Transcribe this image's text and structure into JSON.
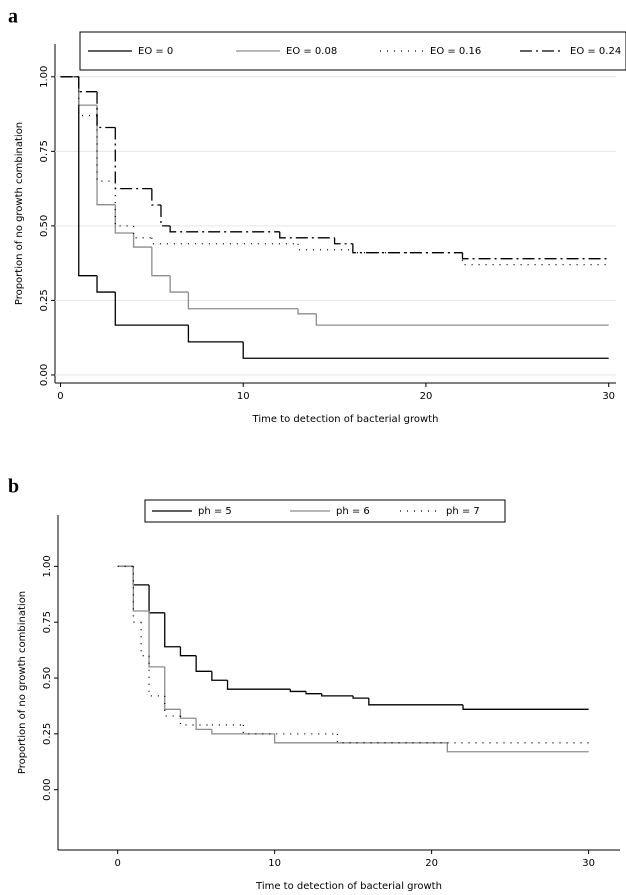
{
  "chart_data": [
    {
      "type": "step",
      "panel_label": "a",
      "xlabel": "Time to detection of bacterial growth",
      "ylabel": "Proportion of no growth combination",
      "xlim": [
        -0.3,
        30.4
      ],
      "ylim": [
        -0.027,
        1.11
      ],
      "xticks": [
        0,
        10,
        20,
        30
      ],
      "yticks": [
        {
          "value": 0,
          "label": "0.00"
        },
        {
          "value": 0.25,
          "label": "0.25"
        },
        {
          "value": 0.5,
          "label": "0.50"
        },
        {
          "value": 0.75,
          "label": "0.75"
        },
        {
          "value": 1,
          "label": "1.00"
        }
      ],
      "grid": true,
      "series": [
        {
          "name": "EO = 0",
          "color": "#000000",
          "dash": "solid",
          "x": [
            0,
            1,
            2,
            3,
            7,
            10,
            30
          ],
          "values": [
            1,
            0.333,
            0.278,
            0.167,
            0.111,
            0.056,
            0.056
          ]
        },
        {
          "name": "EO = 0.08",
          "color": "#8c8c8c",
          "dash": "solid",
          "x": [
            0,
            1,
            2,
            3,
            4,
            5,
            6,
            7,
            13,
            14,
            30
          ],
          "values": [
            1,
            0.905,
            0.571,
            0.476,
            0.429,
            0.333,
            0.278,
            0.222,
            0.205,
            0.167,
            0.167
          ]
        },
        {
          "name": "EO = 0.16",
          "color": "#000000",
          "dash": "dotted",
          "x": [
            0,
            1,
            2,
            3,
            4,
            5,
            13,
            16,
            22,
            30
          ],
          "values": [
            1,
            0.87,
            0.65,
            0.5,
            0.46,
            0.44,
            0.42,
            0.41,
            0.37,
            0.37
          ]
        },
        {
          "name": "EO = 0.24",
          "color": "#000000",
          "dash": "dashdot",
          "x": [
            0,
            1,
            2,
            3,
            5,
            5.5,
            6,
            12,
            15,
            16,
            22,
            30
          ],
          "values": [
            1,
            0.95,
            0.83,
            0.625,
            0.57,
            0.5,
            0.48,
            0.46,
            0.44,
            0.41,
            0.39,
            0.39
          ]
        }
      ]
    },
    {
      "type": "step",
      "panel_label": "b",
      "xlabel": "Time to detection of bacterial growth",
      "ylabel": "Proportion of no growth combination",
      "xlim": [
        -3.8,
        32
      ],
      "ylim": [
        -0.27,
        1.23
      ],
      "xticks": [
        0,
        10,
        20,
        30
      ],
      "yticks": [
        {
          "value": 0,
          "label": "0.00"
        },
        {
          "value": 0.25,
          "label": "0.25"
        },
        {
          "value": 0.5,
          "label": "0.50"
        },
        {
          "value": 0.75,
          "label": "0.75"
        },
        {
          "value": 1,
          "label": "1.00"
        }
      ],
      "grid": false,
      "series": [
        {
          "name": "ph = 5",
          "color": "#000000",
          "dash": "solid",
          "x": [
            0,
            1,
            2,
            3,
            4,
            5,
            6,
            7,
            11,
            12,
            13,
            15,
            16,
            22,
            30
          ],
          "values": [
            1,
            0.917,
            0.792,
            0.64,
            0.6,
            0.53,
            0.49,
            0.45,
            0.44,
            0.43,
            0.42,
            0.41,
            0.38,
            0.36,
            0.36
          ]
        },
        {
          "name": "ph = 6",
          "color": "#8c8c8c",
          "dash": "solid",
          "x": [
            0,
            1,
            2,
            3,
            4,
            5,
            6,
            10,
            21,
            30
          ],
          "values": [
            1,
            0.8,
            0.55,
            0.36,
            0.32,
            0.27,
            0.25,
            0.21,
            0.17,
            0.17
          ]
        },
        {
          "name": "ph = 7",
          "color": "#000000",
          "dash": "dotted",
          "x": [
            0,
            1,
            1.5,
            2,
            3,
            4,
            6,
            8,
            14,
            30
          ],
          "values": [
            1,
            0.75,
            0.6,
            0.42,
            0.33,
            0.29,
            0.29,
            0.25,
            0.21,
            0.21
          ]
        }
      ]
    }
  ]
}
